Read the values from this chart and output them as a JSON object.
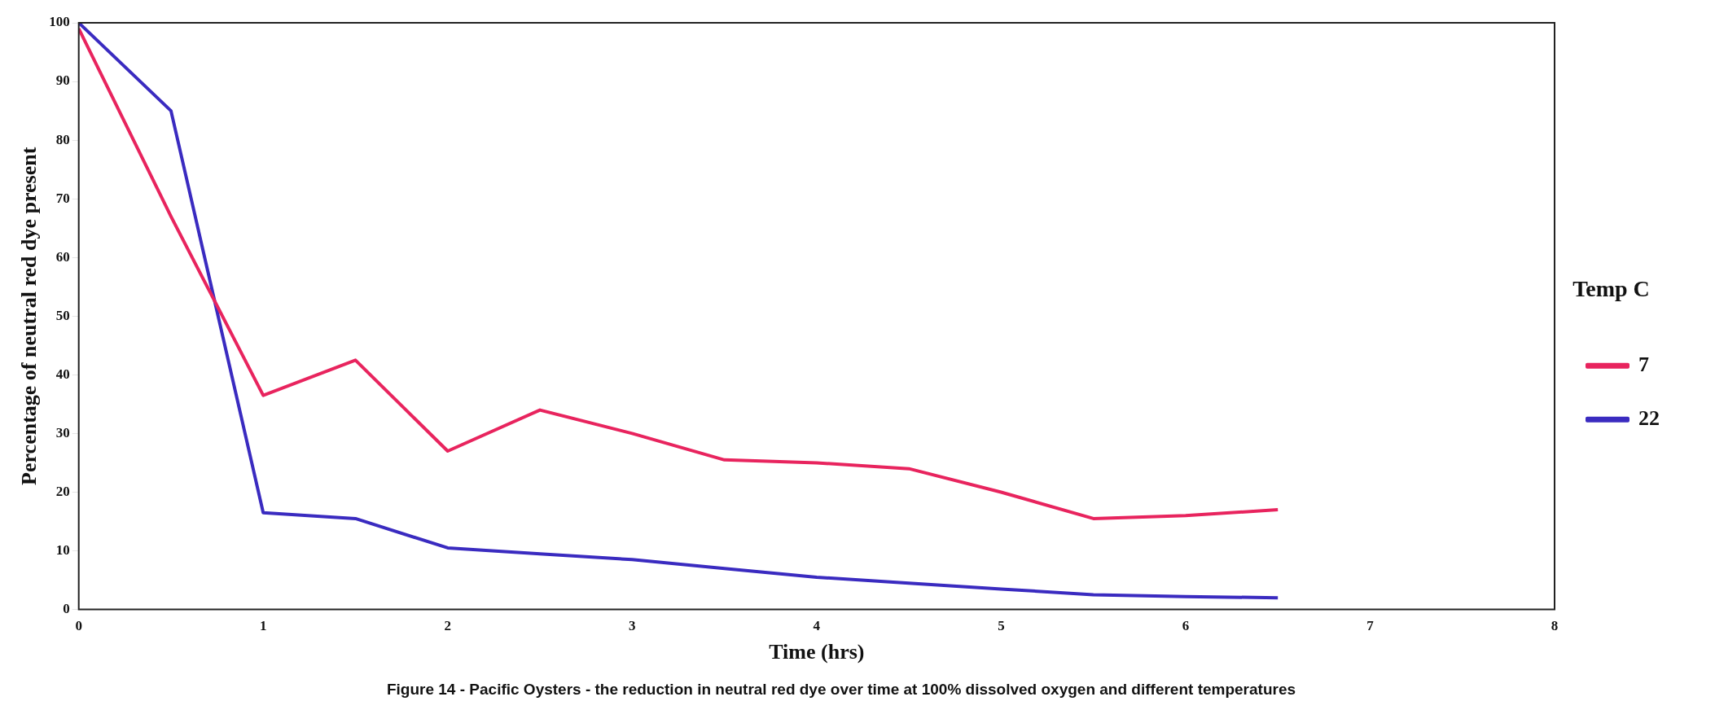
{
  "chart_data": {
    "type": "line",
    "title": "Figure 14 - Pacific Oysters - the reduction in neutral red dye over time at 100% dissolved oxygen and different temperatures",
    "xlabel": "Time (hrs)",
    "ylabel": "Percentage of neutral red dye present",
    "legend_title": "Temp C",
    "x": [
      0,
      0.5,
      1,
      1.5,
      2,
      2.5,
      3,
      3.5,
      4,
      4.5,
      5,
      5.5,
      6,
      6.5
    ],
    "series": [
      {
        "name": "7",
        "color": "#e8245e",
        "values": [
          99,
          67,
          36.5,
          42.5,
          27,
          34,
          30,
          25.5,
          25,
          24,
          20,
          15.5,
          16,
          17
        ]
      },
      {
        "name": "22",
        "color": "#3a2bc0",
        "values": [
          100,
          85,
          16.5,
          15.5,
          10.5,
          9.5,
          8.5,
          7,
          5.5,
          4.5,
          3.5,
          2.5,
          2.2,
          2
        ]
      }
    ],
    "xlim": [
      0,
      8
    ],
    "xticks": [
      0,
      1,
      2,
      3,
      4,
      5,
      6,
      7,
      8
    ],
    "ylim": [
      0,
      100
    ],
    "yticks": [
      0,
      10,
      20,
      30,
      40,
      50,
      60,
      70,
      80,
      90,
      100
    ],
    "grid": false,
    "legend": "right",
    "marker": "none",
    "line_style": "solid"
  }
}
